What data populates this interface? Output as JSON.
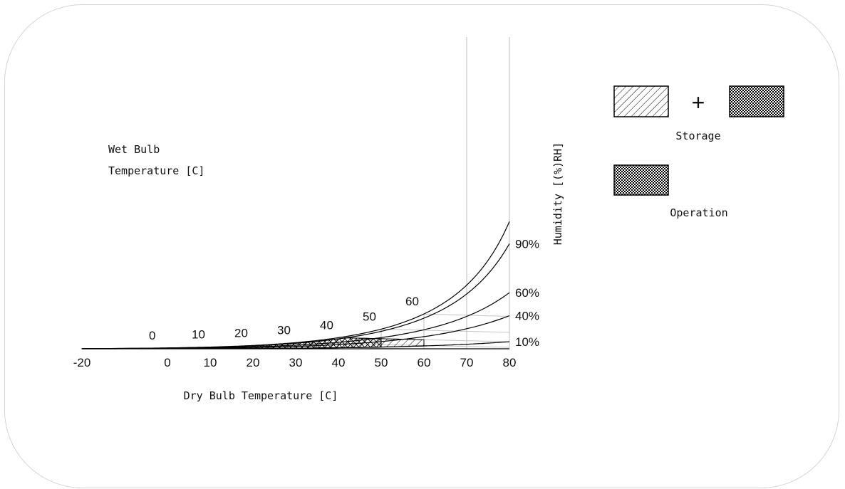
{
  "chart_data": {
    "type": "area",
    "subtype": "psychrometric-chart",
    "xlabel": "Dry Bulb Temperature [C]",
    "ylabel": "Humidity [(%)RH]",
    "wet_bulb_label_line1": "Wet Bulb",
    "wet_bulb_label_line2": "Temperature [C]",
    "xlim": [
      -20,
      80
    ],
    "x_ticks": [
      "-20",
      "0",
      "10",
      "20",
      "30",
      "40",
      "50",
      "60",
      "70",
      "80"
    ],
    "rh_curves": [
      "10%",
      "40%",
      "60%",
      "90%"
    ],
    "wet_bulb_labels": [
      "0",
      "10",
      "20",
      "30",
      "40",
      "50",
      "60"
    ],
    "regions": [
      {
        "name": "storage",
        "x_range": [
          -20,
          60
        ],
        "rh_range": [
          10,
          90
        ],
        "max_wet_bulb": 40
      },
      {
        "name": "operation",
        "x_range": [
          0,
          50
        ],
        "rh_range": [
          10,
          90
        ],
        "max_wet_bulb": 40
      }
    ],
    "legend": {
      "position": "right",
      "operator": "+",
      "storage_label": "Storage",
      "operation_label": "Operation"
    },
    "grid": true
  }
}
